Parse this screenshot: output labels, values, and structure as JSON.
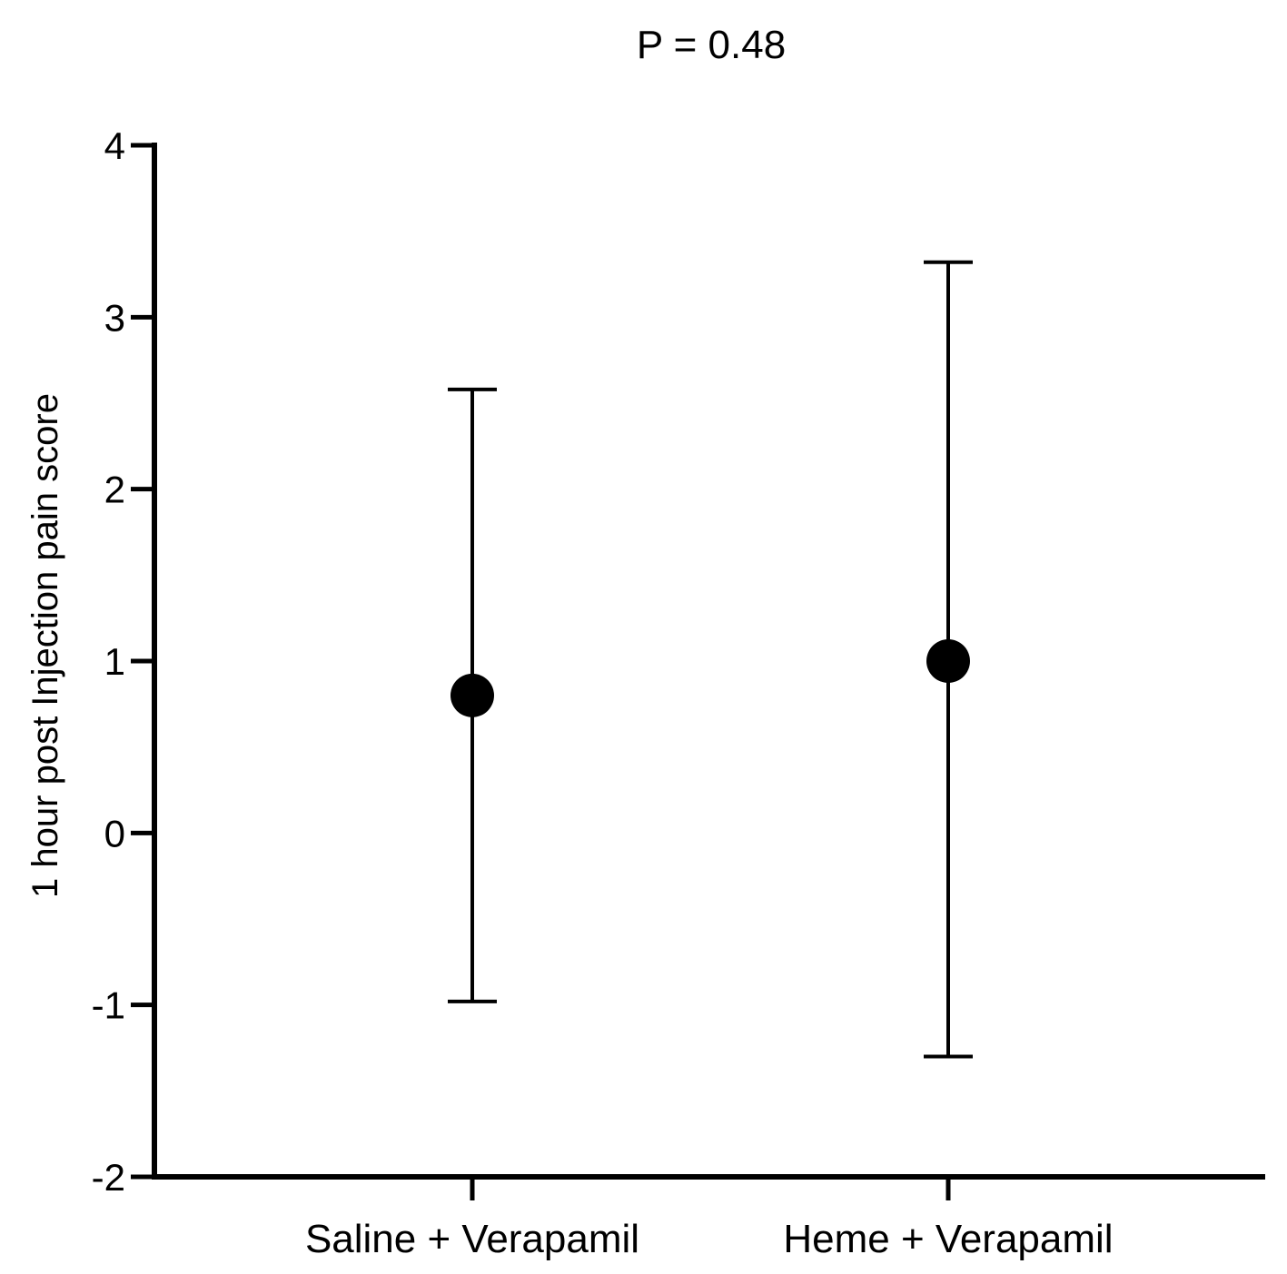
{
  "chart_data": {
    "type": "scatter",
    "title": "P = 0.48",
    "xlabel": "",
    "ylabel": "1 hour post Injection pain score",
    "categories": [
      "Saline + Verapamil",
      "Heme + Verapamil"
    ],
    "series": [
      {
        "points": [
          {
            "category": "Saline + Verapamil",
            "mean": 0.8,
            "error_low": -0.98,
            "error_high": 2.58
          },
          {
            "category": "Heme + Verapamil",
            "mean": 1.0,
            "error_low": -1.3,
            "error_high": 3.32
          }
        ]
      }
    ],
    "y_ticks": [
      -2,
      -1,
      0,
      1,
      2,
      3,
      4
    ],
    "y_tick_labels": [
      "-2",
      "-1",
      "0",
      "1",
      "2",
      "3",
      "4"
    ],
    "ylim": [
      -2,
      4
    ],
    "grid": false,
    "legend": "none",
    "colors": {
      "marker": "#000000",
      "axis": "#000000"
    }
  }
}
